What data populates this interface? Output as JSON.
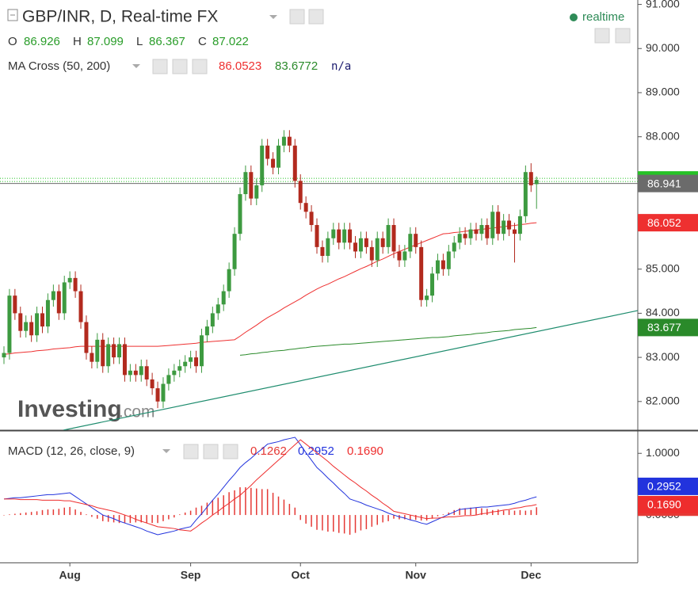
{
  "chart_data": [
    {
      "type": "candlestick",
      "title": "GBP/INR, D, Real-time FX",
      "status": "realtime",
      "ohlc_labels": [
        "O",
        "H",
        "L",
        "C"
      ],
      "categories": [
        null,
        null,
        null,
        null,
        null,
        null,
        null,
        null,
        null,
        null,
        null,
        null,
        "Aug",
        null,
        null,
        null,
        null,
        null,
        null,
        null,
        null,
        null,
        null,
        null,
        null,
        null,
        null,
        null,
        null,
        null,
        null,
        null,
        null,
        null,
        "Sep",
        null,
        null,
        null,
        null,
        null,
        null,
        null,
        null,
        null,
        null,
        null,
        null,
        null,
        null,
        null,
        null,
        null,
        null,
        null,
        "Oct",
        null,
        null,
        null,
        null,
        null,
        null,
        null,
        null,
        null,
        null,
        null,
        null,
        null,
        null,
        null,
        null,
        null,
        null,
        null,
        null,
        "Nov",
        null,
        null,
        null,
        null,
        null,
        null,
        null,
        null,
        null,
        null,
        null,
        null,
        null,
        null,
        null,
        null,
        null,
        null,
        null,
        null,
        "Dec",
        null
      ],
      "open": [
        83.0,
        83.1,
        84.4,
        84.0,
        83.6,
        83.8,
        83.5,
        84.0,
        83.7,
        84.3,
        84.5,
        84.0,
        84.7,
        84.8,
        84.5,
        83.8,
        83.1,
        82.9,
        83.4,
        82.8,
        83.3,
        83.0,
        83.3,
        82.6,
        82.7,
        82.6,
        82.8,
        82.5,
        82.3,
        82.0,
        82.4,
        82.6,
        82.7,
        82.8,
        82.9,
        83.0,
        82.8,
        83.5,
        83.7,
        84.0,
        84.2,
        84.5,
        85.0,
        85.8,
        86.7,
        87.2,
        86.6,
        86.9,
        87.8,
        87.5,
        87.3,
        87.8,
        88.0,
        87.8,
        87.0,
        86.5,
        86.3,
        86.0,
        85.5,
        85.3,
        85.7,
        85.9,
        85.6,
        85.9,
        85.6,
        85.4,
        85.7,
        85.5,
        85.2,
        85.7,
        85.5,
        86.0,
        85.4,
        85.2,
        85.4,
        85.8,
        85.5,
        84.3,
        84.4,
        84.9,
        85.2,
        85.0,
        85.4,
        85.6,
        85.8,
        85.7,
        85.9,
        85.8,
        86.0,
        85.7,
        86.3,
        85.8,
        86.1,
        85.9,
        85.8,
        86.2,
        87.2,
        86.926
      ],
      "high": [
        83.25,
        84.55,
        84.55,
        84.15,
        83.95,
        83.95,
        84.15,
        84.15,
        84.45,
        84.65,
        84.65,
        84.85,
        84.95,
        84.95,
        84.65,
        83.95,
        83.25,
        83.55,
        83.55,
        83.45,
        83.45,
        83.45,
        83.45,
        82.85,
        82.85,
        82.95,
        82.95,
        82.65,
        82.45,
        82.55,
        82.75,
        82.85,
        82.95,
        83.05,
        83.15,
        83.15,
        83.65,
        83.85,
        84.15,
        84.35,
        84.65,
        85.15,
        85.95,
        86.85,
        87.35,
        87.35,
        87.05,
        87.95,
        87.95,
        87.65,
        87.95,
        88.15,
        88.15,
        87.95,
        87.15,
        86.65,
        86.45,
        86.15,
        85.65,
        85.85,
        86.05,
        86.05,
        86.05,
        86.05,
        85.75,
        85.85,
        85.85,
        85.65,
        85.85,
        85.85,
        86.15,
        86.15,
        85.55,
        85.55,
        85.95,
        85.95,
        85.65,
        84.55,
        85.05,
        85.35,
        85.35,
        85.55,
        85.75,
        85.95,
        85.95,
        86.05,
        86.05,
        86.15,
        86.15,
        86.45,
        86.45,
        86.25,
        86.25,
        86.05,
        86.35,
        87.35,
        87.4,
        87.099
      ],
      "low": [
        82.85,
        82.95,
        83.85,
        83.45,
        83.45,
        83.35,
        83.35,
        83.55,
        83.55,
        84.15,
        83.85,
        83.85,
        84.55,
        84.35,
        83.65,
        82.95,
        82.75,
        82.75,
        82.65,
        82.65,
        82.85,
        82.85,
        82.45,
        82.45,
        82.45,
        82.45,
        82.35,
        82.15,
        81.85,
        81.85,
        82.25,
        82.45,
        82.55,
        82.65,
        82.75,
        82.65,
        82.65,
        83.35,
        83.55,
        83.85,
        84.05,
        84.35,
        84.85,
        85.65,
        86.55,
        86.45,
        86.45,
        86.75,
        87.35,
        87.15,
        87.15,
        87.65,
        87.65,
        86.85,
        86.35,
        86.15,
        85.85,
        85.35,
        85.15,
        85.15,
        85.55,
        85.45,
        85.45,
        85.45,
        85.25,
        85.25,
        85.35,
        85.05,
        85.05,
        85.35,
        85.35,
        85.25,
        85.05,
        85.05,
        85.25,
        85.35,
        84.15,
        84.15,
        84.25,
        84.75,
        84.85,
        84.85,
        85.25,
        85.45,
        85.55,
        85.55,
        85.65,
        85.65,
        85.55,
        85.55,
        85.65,
        85.65,
        85.75,
        85.15,
        85.65,
        86.05,
        86.75,
        86.367
      ],
      "close": [
        83.1,
        84.4,
        84.0,
        83.6,
        83.8,
        83.5,
        84.0,
        83.7,
        84.3,
        84.5,
        84.0,
        84.7,
        84.8,
        84.5,
        83.8,
        83.1,
        82.9,
        83.4,
        82.8,
        83.3,
        83.0,
        83.3,
        82.6,
        82.7,
        82.6,
        82.8,
        82.5,
        82.3,
        82.0,
        82.4,
        82.6,
        82.7,
        82.8,
        82.9,
        83.0,
        82.8,
        83.5,
        83.7,
        84.0,
        84.2,
        84.5,
        85.0,
        85.8,
        86.7,
        87.2,
        86.6,
        86.9,
        87.8,
        87.5,
        87.3,
        87.8,
        88.0,
        87.8,
        87.0,
        86.5,
        86.3,
        86.0,
        85.5,
        85.3,
        85.7,
        85.9,
        85.6,
        85.9,
        85.6,
        85.4,
        85.7,
        85.5,
        85.2,
        85.7,
        85.5,
        86.0,
        85.4,
        85.2,
        85.4,
        85.8,
        85.5,
        84.3,
        84.4,
        84.9,
        85.2,
        85.0,
        85.4,
        85.6,
        85.8,
        85.7,
        85.9,
        85.8,
        86.0,
        85.7,
        86.3,
        85.8,
        86.1,
        85.9,
        85.8,
        86.2,
        87.2,
        86.9,
        87.022
      ],
      "up_color": "#3d9a40",
      "down_color": "#b22a1e",
      "last_price_color": "#25c225",
      "price_line": 86.941,
      "price_line_color": "#6b6b6b",
      "indicator": "MA Cross (50, 200)",
      "indicator_extra": "n/a",
      "series": [
        {
          "color": "#ee3030",
          "value_label": "86.052",
          "values": [
            83.07,
            83.08,
            83.1,
            83.11,
            83.12,
            83.13,
            83.15,
            83.16,
            83.17,
            83.19,
            83.2,
            83.21,
            83.22,
            83.24,
            83.25,
            83.25,
            83.25,
            83.25,
            83.25,
            83.25,
            83.25,
            83.25,
            83.25,
            83.25,
            83.25,
            83.25,
            83.25,
            83.25,
            83.25,
            83.26,
            83.27,
            83.28,
            83.29,
            83.3,
            83.31,
            83.32,
            83.34,
            83.35,
            83.36,
            83.37,
            83.38,
            83.39,
            83.4,
            83.48,
            83.57,
            83.65,
            83.73,
            83.82,
            83.9,
            83.97,
            84.04,
            84.12,
            84.19,
            84.26,
            84.33,
            84.41,
            84.48,
            84.55,
            84.61,
            84.66,
            84.72,
            84.78,
            84.83,
            84.89,
            84.95,
            85.01,
            85.06,
            85.12,
            85.18,
            85.23,
            85.29,
            85.35,
            85.4,
            85.45,
            85.5,
            85.55,
            85.6,
            85.65,
            85.7,
            85.75,
            85.8,
            85.81,
            85.83,
            85.84,
            85.86,
            85.87,
            85.89,
            85.9,
            85.92,
            85.93,
            85.95,
            85.96,
            85.98,
            85.99,
            86.01,
            86.02,
            86.04,
            86.0523
          ]
        },
        {
          "color": "#2a8a2a",
          "value_label": "83.677",
          "values": [
            null,
            null,
            null,
            null,
            null,
            null,
            null,
            null,
            null,
            null,
            null,
            null,
            null,
            null,
            null,
            null,
            null,
            null,
            null,
            null,
            null,
            null,
            null,
            null,
            null,
            null,
            null,
            null,
            null,
            null,
            null,
            null,
            null,
            null,
            null,
            null,
            null,
            null,
            null,
            null,
            null,
            null,
            null,
            83.05,
            83.06,
            83.08,
            83.09,
            83.11,
            83.12,
            83.14,
            83.15,
            83.16,
            83.18,
            83.19,
            83.21,
            83.22,
            83.24,
            83.25,
            83.26,
            83.27,
            83.28,
            83.29,
            83.3,
            83.3,
            83.31,
            83.32,
            83.33,
            83.34,
            83.35,
            83.36,
            83.37,
            83.38,
            83.39,
            83.4,
            83.41,
            83.42,
            83.43,
            83.44,
            83.45,
            83.45,
            83.46,
            83.47,
            83.49,
            83.5,
            83.51,
            83.52,
            83.54,
            83.55,
            83.56,
            83.58,
            83.59,
            83.6,
            83.61,
            83.63,
            83.64,
            83.65,
            83.66,
            83.6772
          ]
        }
      ],
      "trend_line": {
        "color": "#1e8c6e",
        "x": [
          10.8,
          115.4
        ],
        "y": [
          81.35,
          84.06
        ]
      },
      "watermark": [
        "Investing",
        ".com"
      ],
      "ylim": [
        81.35,
        91.1
      ],
      "yticks": [
        {
          "value": 82,
          "label": "82.000"
        },
        {
          "value": 83,
          "label": "83.000"
        },
        {
          "value": 84,
          "label": "84.000"
        },
        {
          "value": 85,
          "label": "85.000"
        },
        {
          "value": 86,
          "label": "86.000"
        },
        {
          "value": 87,
          "label": "87.000"
        },
        {
          "value": 88,
          "label": "88.000"
        },
        {
          "value": 89,
          "label": "89.000"
        },
        {
          "value": 90,
          "label": "90.000"
        },
        {
          "value": 91,
          "label": "91.000"
        }
      ]
    },
    {
      "type": "macd",
      "title": "MACD (12, 26, close, 9)",
      "series": [
        {
          "color": "#2233dd",
          "values": [
            0.26,
            0.27,
            0.28,
            0.28,
            0.29,
            0.3,
            0.31,
            0.32,
            0.33,
            0.33,
            0.34,
            0.35,
            0.36,
            0.3,
            0.24,
            0.18,
            0.12,
            0.06,
            0.0,
            -0.03,
            -0.06,
            -0.1,
            -0.13,
            -0.16,
            -0.19,
            -0.22,
            -0.26,
            -0.29,
            -0.32,
            -0.3,
            -0.28,
            -0.26,
            -0.23,
            -0.21,
            -0.19,
            -0.08,
            0.02,
            0.13,
            0.24,
            0.34,
            0.45,
            0.56,
            0.66,
            0.77,
            0.85,
            0.92,
            1.0,
            1.07,
            1.15,
            1.17,
            1.19,
            1.22,
            1.24,
            1.26,
            1.14,
            1.01,
            0.89,
            0.77,
            0.69,
            0.6,
            0.52,
            0.43,
            0.35,
            0.26,
            0.23,
            0.2,
            0.16,
            0.13,
            0.1,
            0.07,
            0.03,
            0.0,
            -0.03,
            -0.05,
            -0.08,
            -0.1,
            -0.13,
            -0.15,
            -0.11,
            -0.07,
            -0.03,
            0.01,
            0.05,
            0.09,
            0.1,
            0.11,
            0.12,
            0.13,
            0.13,
            0.14,
            0.15,
            0.16,
            0.17,
            0.19,
            0.22,
            0.24,
            0.27,
            0.2952
          ]
        },
        {
          "color": "#ee2d2d",
          "value_label": "0.1690",
          "values": [
            0.26,
            0.26,
            0.26,
            0.25,
            0.25,
            0.25,
            0.25,
            0.24,
            0.24,
            0.24,
            0.24,
            0.23,
            0.23,
            0.21,
            0.19,
            0.17,
            0.15,
            0.12,
            0.1,
            0.08,
            0.06,
            0.03,
            0.0,
            -0.03,
            -0.07,
            -0.1,
            -0.13,
            -0.16,
            -0.19,
            -0.2,
            -0.21,
            -0.22,
            -0.24,
            -0.25,
            -0.26,
            -0.2,
            -0.13,
            -0.07,
            0.0,
            0.06,
            0.13,
            0.19,
            0.26,
            0.32,
            0.4,
            0.48,
            0.57,
            0.65,
            0.73,
            0.81,
            0.89,
            0.97,
            1.06,
            1.14,
            1.22,
            1.15,
            1.08,
            1.01,
            0.94,
            0.87,
            0.79,
            0.72,
            0.65,
            0.58,
            0.52,
            0.45,
            0.39,
            0.32,
            0.26,
            0.19,
            0.13,
            0.06,
            0.04,
            0.02,
            0.0,
            -0.02,
            -0.04,
            -0.06,
            -0.05,
            -0.05,
            -0.04,
            -0.03,
            -0.03,
            -0.02,
            -0.01,
            -0.01,
            0.0,
            0.02,
            0.03,
            0.05,
            0.06,
            0.08,
            0.09,
            0.11,
            0.12,
            0.14,
            0.15,
            0.169
          ]
        }
      ],
      "histogram": {
        "color": "#e53935",
        "values": [
          0.0,
          0.01,
          0.02,
          0.03,
          0.04,
          0.05,
          0.06,
          0.08,
          0.09,
          0.09,
          0.1,
          0.12,
          0.13,
          0.09,
          0.05,
          0.01,
          -0.03,
          -0.06,
          -0.1,
          -0.11,
          -0.12,
          -0.13,
          -0.13,
          -0.13,
          -0.12,
          -0.12,
          -0.13,
          -0.13,
          -0.13,
          -0.1,
          -0.07,
          -0.04,
          0.01,
          0.04,
          0.07,
          0.12,
          0.15,
          0.2,
          0.24,
          0.28,
          0.32,
          0.37,
          0.4,
          0.45,
          0.45,
          0.44,
          0.43,
          0.42,
          0.42,
          0.36,
          0.3,
          0.25,
          0.18,
          0.12,
          -0.08,
          -0.14,
          -0.19,
          -0.24,
          -0.25,
          -0.27,
          -0.27,
          -0.29,
          -0.3,
          -0.32,
          -0.29,
          -0.25,
          -0.23,
          -0.19,
          -0.16,
          -0.12,
          -0.1,
          -0.06,
          -0.07,
          -0.07,
          -0.08,
          -0.08,
          -0.09,
          -0.09,
          -0.06,
          -0.02,
          0.01,
          0.04,
          0.08,
          0.11,
          0.11,
          0.12,
          0.12,
          0.11,
          0.1,
          0.08,
          0.09,
          0.07,
          0.08,
          0.07,
          0.08,
          0.07,
          0.08,
          0.1262
        ]
      },
      "ylim": [
        -0.77,
        1.35
      ],
      "yticks": [
        {
          "value": 0,
          "label": "0.0000"
        },
        {
          "value": 1,
          "label": "1.0000"
        }
      ]
    }
  ]
}
